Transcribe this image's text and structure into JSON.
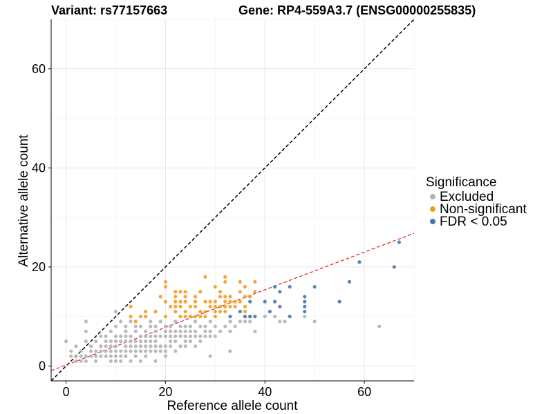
{
  "header": {
    "variant_label": "Variant: rs77157663",
    "gene_label": "Gene: RP4-559A3.7 (ENSG00000255835)"
  },
  "chart_data": {
    "type": "scatter",
    "xlabel": "Reference allele count",
    "ylabel": "Alternative allele count",
    "xlim": [
      -3,
      70
    ],
    "ylim": [
      -3,
      70
    ],
    "x_ticks": [
      0,
      20,
      40,
      60
    ],
    "y_ticks": [
      0,
      20,
      40,
      60
    ],
    "grid": true,
    "legend": {
      "title": "Significance",
      "position": "right",
      "entries": [
        "Excluded",
        "Non-significant",
        "FDR < 0.05"
      ]
    },
    "colors": {
      "Excluded": "#b3b3b3",
      "Non-significant": "#f39c1f",
      "FDR < 0.05": "#4a77aa",
      "identity_line": "#000000",
      "fit_line": "#e31a1c"
    },
    "reference_lines": [
      {
        "kind": "identity",
        "slope": 1,
        "intercept": 0,
        "style": "dashed"
      },
      {
        "kind": "fit",
        "slope": 0.38,
        "intercept": 0.2,
        "style": "dashed"
      }
    ],
    "series": [
      {
        "name": "Excluded",
        "points": [
          [
            0,
            5
          ],
          [
            1,
            2
          ],
          [
            1,
            3
          ],
          [
            2,
            1
          ],
          [
            2,
            2
          ],
          [
            2,
            4
          ],
          [
            3,
            1
          ],
          [
            3,
            2
          ],
          [
            3,
            3
          ],
          [
            4,
            1
          ],
          [
            4,
            2
          ],
          [
            4,
            5
          ],
          [
            4,
            9
          ],
          [
            4,
            7
          ],
          [
            5,
            2
          ],
          [
            5,
            3
          ],
          [
            5,
            4
          ],
          [
            6,
            1
          ],
          [
            6,
            2
          ],
          [
            6,
            3
          ],
          [
            6,
            5
          ],
          [
            7,
            2
          ],
          [
            7,
            3
          ],
          [
            7,
            4
          ],
          [
            7,
            6
          ],
          [
            8,
            2
          ],
          [
            8,
            3
          ],
          [
            8,
            4
          ],
          [
            8,
            5
          ],
          [
            8,
            6
          ],
          [
            9,
            1
          ],
          [
            9,
            2
          ],
          [
            9,
            3
          ],
          [
            9,
            4
          ],
          [
            9,
            5
          ],
          [
            9,
            7
          ],
          [
            10,
            1
          ],
          [
            10,
            2
          ],
          [
            10,
            3
          ],
          [
            10,
            4
          ],
          [
            10,
            5
          ],
          [
            10,
            6
          ],
          [
            10,
            8
          ],
          [
            10,
            11
          ],
          [
            11,
            1
          ],
          [
            11,
            2
          ],
          [
            11,
            3
          ],
          [
            11,
            5
          ],
          [
            11,
            6
          ],
          [
            11,
            9
          ],
          [
            12,
            2
          ],
          [
            12,
            3
          ],
          [
            12,
            4
          ],
          [
            12,
            5
          ],
          [
            12,
            6
          ],
          [
            12,
            7
          ],
          [
            12,
            8
          ],
          [
            13,
            1
          ],
          [
            13,
            3
          ],
          [
            13,
            4
          ],
          [
            13,
            5
          ],
          [
            13,
            6
          ],
          [
            13,
            9
          ],
          [
            14,
            2
          ],
          [
            14,
            3
          ],
          [
            14,
            4
          ],
          [
            14,
            5
          ],
          [
            14,
            7
          ],
          [
            14,
            8
          ],
          [
            15,
            1
          ],
          [
            15,
            3
          ],
          [
            15,
            4
          ],
          [
            15,
            5
          ],
          [
            15,
            6
          ],
          [
            15,
            8
          ],
          [
            16,
            2
          ],
          [
            16,
            3
          ],
          [
            16,
            4
          ],
          [
            16,
            5
          ],
          [
            16,
            6
          ],
          [
            16,
            7
          ],
          [
            17,
            3
          ],
          [
            17,
            4
          ],
          [
            17,
            5
          ],
          [
            17,
            6
          ],
          [
            17,
            8
          ],
          [
            17,
            9
          ],
          [
            18,
            1
          ],
          [
            18,
            3
          ],
          [
            18,
            4
          ],
          [
            18,
            5
          ],
          [
            18,
            6
          ],
          [
            18,
            7
          ],
          [
            18,
            8
          ],
          [
            19,
            3
          ],
          [
            19,
            4
          ],
          [
            19,
            6
          ],
          [
            19,
            9
          ],
          [
            20,
            2
          ],
          [
            20,
            3
          ],
          [
            20,
            4
          ],
          [
            20,
            6
          ],
          [
            20,
            7
          ],
          [
            20,
            8
          ],
          [
            21,
            4
          ],
          [
            21,
            5
          ],
          [
            21,
            6
          ],
          [
            21,
            7
          ],
          [
            21,
            8
          ],
          [
            22,
            3
          ],
          [
            22,
            5
          ],
          [
            22,
            6
          ],
          [
            22,
            7
          ],
          [
            22,
            9
          ],
          [
            23,
            4
          ],
          [
            23,
            6
          ],
          [
            23,
            7
          ],
          [
            23,
            8
          ],
          [
            24,
            4
          ],
          [
            24,
            5
          ],
          [
            24,
            6
          ],
          [
            24,
            7
          ],
          [
            24,
            8
          ],
          [
            25,
            5
          ],
          [
            25,
            6
          ],
          [
            25,
            7
          ],
          [
            25,
            8
          ],
          [
            26,
            4
          ],
          [
            26,
            6
          ],
          [
            26,
            7
          ],
          [
            26,
            9
          ],
          [
            27,
            5
          ],
          [
            27,
            6
          ],
          [
            27,
            8
          ],
          [
            28,
            6
          ],
          [
            28,
            7
          ],
          [
            28,
            8
          ],
          [
            29,
            2
          ],
          [
            29,
            6
          ],
          [
            29,
            7
          ],
          [
            29,
            9
          ],
          [
            30,
            6
          ],
          [
            30,
            8
          ],
          [
            31,
            7
          ],
          [
            32,
            8
          ],
          [
            33,
            3
          ],
          [
            33,
            7
          ],
          [
            33,
            9
          ],
          [
            34,
            8
          ],
          [
            35,
            9
          ],
          [
            36,
            9
          ],
          [
            37,
            9
          ],
          [
            37,
            10
          ],
          [
            38,
            7
          ],
          [
            40,
            10
          ],
          [
            42,
            10
          ],
          [
            43,
            9
          ],
          [
            44,
            9
          ],
          [
            48,
            10
          ],
          [
            50,
            9
          ],
          [
            63,
            8
          ]
        ]
      },
      {
        "name": "Non-significant",
        "points": [
          [
            13,
            10
          ],
          [
            13,
            12
          ],
          [
            14,
            9
          ],
          [
            15,
            10
          ],
          [
            16,
            10
          ],
          [
            16,
            11
          ],
          [
            18,
            11
          ],
          [
            19,
            14
          ],
          [
            20,
            10
          ],
          [
            20,
            13
          ],
          [
            20,
            16
          ],
          [
            20,
            17
          ],
          [
            21,
            12
          ],
          [
            22,
            11
          ],
          [
            22,
            12
          ],
          [
            22,
            13
          ],
          [
            22,
            14
          ],
          [
            22,
            15
          ],
          [
            23,
            10
          ],
          [
            23,
            12
          ],
          [
            23,
            13
          ],
          [
            23,
            15
          ],
          [
            24,
            10
          ],
          [
            24,
            11
          ],
          [
            24,
            13
          ],
          [
            24,
            14
          ],
          [
            24,
            15
          ],
          [
            25,
            10
          ],
          [
            25,
            12
          ],
          [
            26,
            10
          ],
          [
            26,
            12
          ],
          [
            26,
            13
          ],
          [
            26,
            14
          ],
          [
            27,
            10
          ],
          [
            27,
            11
          ],
          [
            27,
            15
          ],
          [
            28,
            10
          ],
          [
            28,
            11
          ],
          [
            28,
            13
          ],
          [
            28,
            18
          ],
          [
            29,
            12
          ],
          [
            29,
            13
          ],
          [
            30,
            10
          ],
          [
            30,
            11
          ],
          [
            30,
            12
          ],
          [
            30,
            13
          ],
          [
            30,
            16
          ],
          [
            31,
            11
          ],
          [
            31,
            12
          ],
          [
            31,
            14
          ],
          [
            31,
            15
          ],
          [
            32,
            11
          ],
          [
            32,
            12
          ],
          [
            32,
            13
          ],
          [
            32,
            14
          ],
          [
            32,
            17
          ],
          [
            32,
            18
          ],
          [
            33,
            12
          ],
          [
            33,
            13
          ],
          [
            33,
            14
          ],
          [
            34,
            12
          ],
          [
            34,
            13
          ],
          [
            35,
            13
          ],
          [
            35,
            15
          ],
          [
            35,
            17
          ],
          [
            36,
            11
          ],
          [
            36,
            12
          ],
          [
            36,
            14
          ],
          [
            36,
            16
          ],
          [
            37,
            14
          ],
          [
            38,
            15
          ],
          [
            38,
            17
          ]
        ]
      },
      {
        "name": "FDR < 0.05",
        "points": [
          [
            33,
            10
          ],
          [
            35,
            11
          ],
          [
            36,
            10
          ],
          [
            37,
            10
          ],
          [
            37,
            13
          ],
          [
            38,
            10
          ],
          [
            40,
            13
          ],
          [
            41,
            11
          ],
          [
            42,
            13
          ],
          [
            42,
            16
          ],
          [
            43,
            12
          ],
          [
            43,
            15
          ],
          [
            45,
            10
          ],
          [
            45,
            16
          ],
          [
            48,
            11
          ],
          [
            48,
            12
          ],
          [
            48,
            13
          ],
          [
            48,
            14
          ],
          [
            50,
            16
          ],
          [
            55,
            13
          ],
          [
            57,
            17
          ],
          [
            59,
            21
          ],
          [
            66,
            20
          ],
          [
            67,
            25
          ]
        ]
      }
    ]
  }
}
